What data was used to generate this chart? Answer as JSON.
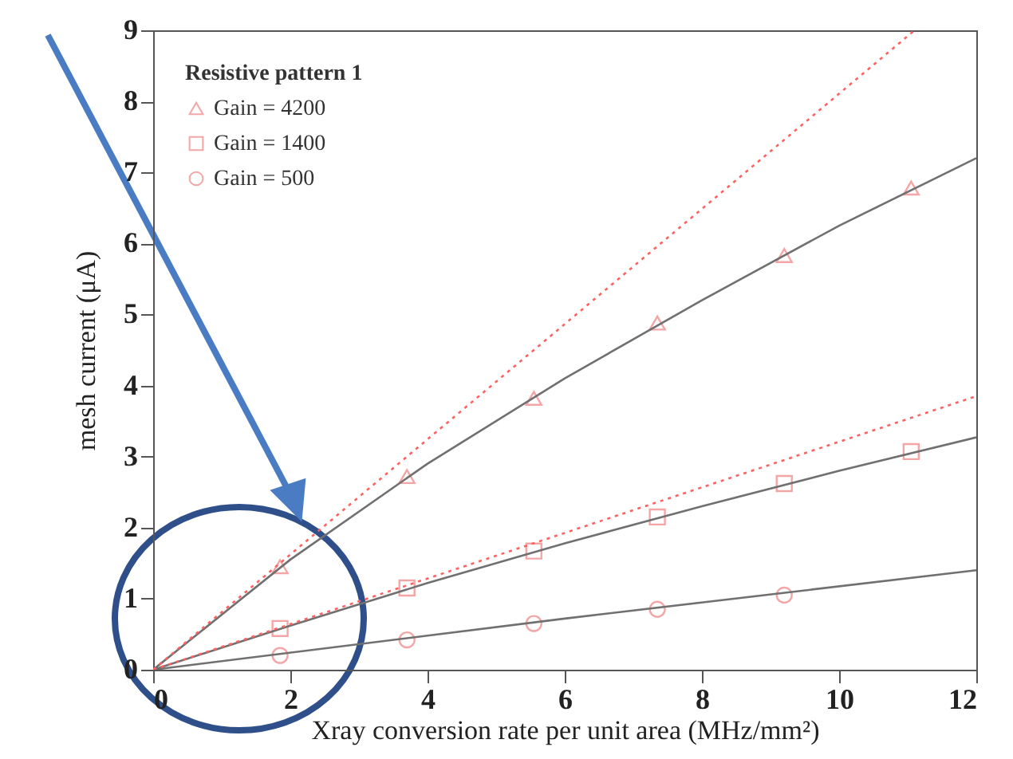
{
  "chart_data": {
    "type": "scatter",
    "xlabel": "Xray conversion rate per unit area (MHz/mm²)",
    "ylabel": "mesh current (μA)",
    "legend_title": "Resistive pattern 1",
    "xlim": [
      0,
      12
    ],
    "ylim": [
      0,
      9
    ],
    "xticks": [
      0,
      2,
      4,
      6,
      8,
      10,
      12
    ],
    "yticks": [
      0,
      1,
      2,
      3,
      4,
      5,
      6,
      7,
      8,
      9
    ],
    "legend": "top left",
    "series": [
      {
        "name": "Gain = 4200",
        "type": "scatter",
        "marker": "triangle",
        "color": "#f08080",
        "x": [
          1.85,
          3.7,
          5.55,
          7.35,
          9.2,
          11.05
        ],
        "values": [
          1.45,
          2.72,
          3.82,
          4.88,
          5.83,
          6.78
        ]
      },
      {
        "name": "Gain = 1400",
        "type": "scatter",
        "marker": "square",
        "color": "#f08080",
        "x": [
          1.85,
          3.7,
          5.55,
          7.35,
          9.2,
          11.05
        ],
        "values": [
          0.58,
          1.15,
          1.67,
          2.15,
          2.62,
          3.07
        ]
      },
      {
        "name": "Gain = 500",
        "type": "scatter",
        "marker": "circle",
        "color": "#f08080",
        "x": [
          1.85,
          3.7,
          5.55,
          7.35,
          9.2
        ],
        "values": [
          0.2,
          0.42,
          0.65,
          0.85,
          1.05
        ]
      },
      {
        "type": "line",
        "color": "#707070",
        "line_style": "solid",
        "x": [
          0,
          2,
          4,
          6,
          8,
          10,
          12
        ],
        "values": [
          0,
          1.55,
          2.9,
          4.1,
          5.2,
          6.25,
          7.2
        ]
      },
      {
        "type": "line",
        "color": "#707070",
        "line_style": "solid",
        "x": [
          0,
          2,
          4,
          6,
          8,
          10,
          12
        ],
        "values": [
          0,
          0.62,
          1.22,
          1.78,
          2.3,
          2.8,
          3.27
        ]
      },
      {
        "type": "line",
        "color": "#707070",
        "line_style": "solid",
        "x": [
          0,
          6,
          12
        ],
        "values": [
          0,
          0.72,
          1.4
        ]
      },
      {
        "type": "line",
        "color": "#ff6060",
        "line_style": "dotted",
        "x": [
          0,
          11.1
        ],
        "values": [
          0,
          9
        ]
      },
      {
        "type": "line",
        "color": "#ff6060",
        "line_style": "dotted",
        "x": [
          0,
          12
        ],
        "values": [
          0,
          3.85
        ]
      }
    ]
  }
}
